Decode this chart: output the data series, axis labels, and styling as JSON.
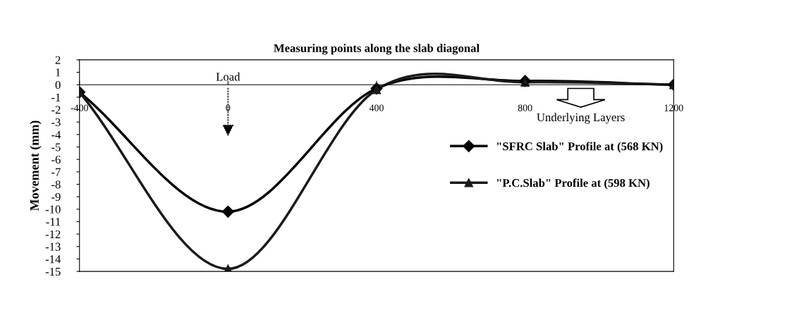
{
  "chart_data": {
    "type": "line",
    "title": "Measuring points along the slab diagonal",
    "ylabel": "Movement (mm)",
    "x": [
      -400,
      0,
      400,
      800,
      1200
    ],
    "series": [
      {
        "name": "\"SFRC Slab\" Profile at (568 KN)",
        "color": "#000000",
        "marker": "diamond",
        "values": [
          -0.6,
          -10.2,
          -0.3,
          0.3,
          0
        ]
      },
      {
        "name": "\"P.C.Slab\" Profile at (598 KN)",
        "color": "#1a1a1a",
        "marker": "triangle",
        "values": [
          -0.6,
          -14.8,
          -0.4,
          0.2,
          0
        ]
      }
    ],
    "xlim": [
      -400,
      1200
    ],
    "xticks": [
      -400,
      0,
      400,
      800,
      1200
    ],
    "ylim": [
      -15,
      2
    ],
    "yticks": [
      2,
      1,
      0,
      -1,
      -2,
      -3,
      -4,
      -5,
      -6,
      -7,
      -8,
      -9,
      -10,
      -11,
      -12,
      -13,
      -14,
      -15
    ],
    "annotations": [
      "Load",
      {
        "text": "Underlying Layers",
        "x": 950,
        "y": 0
      }
    ],
    "grid": false,
    "legend": "right",
    "line_style": "solid"
  }
}
